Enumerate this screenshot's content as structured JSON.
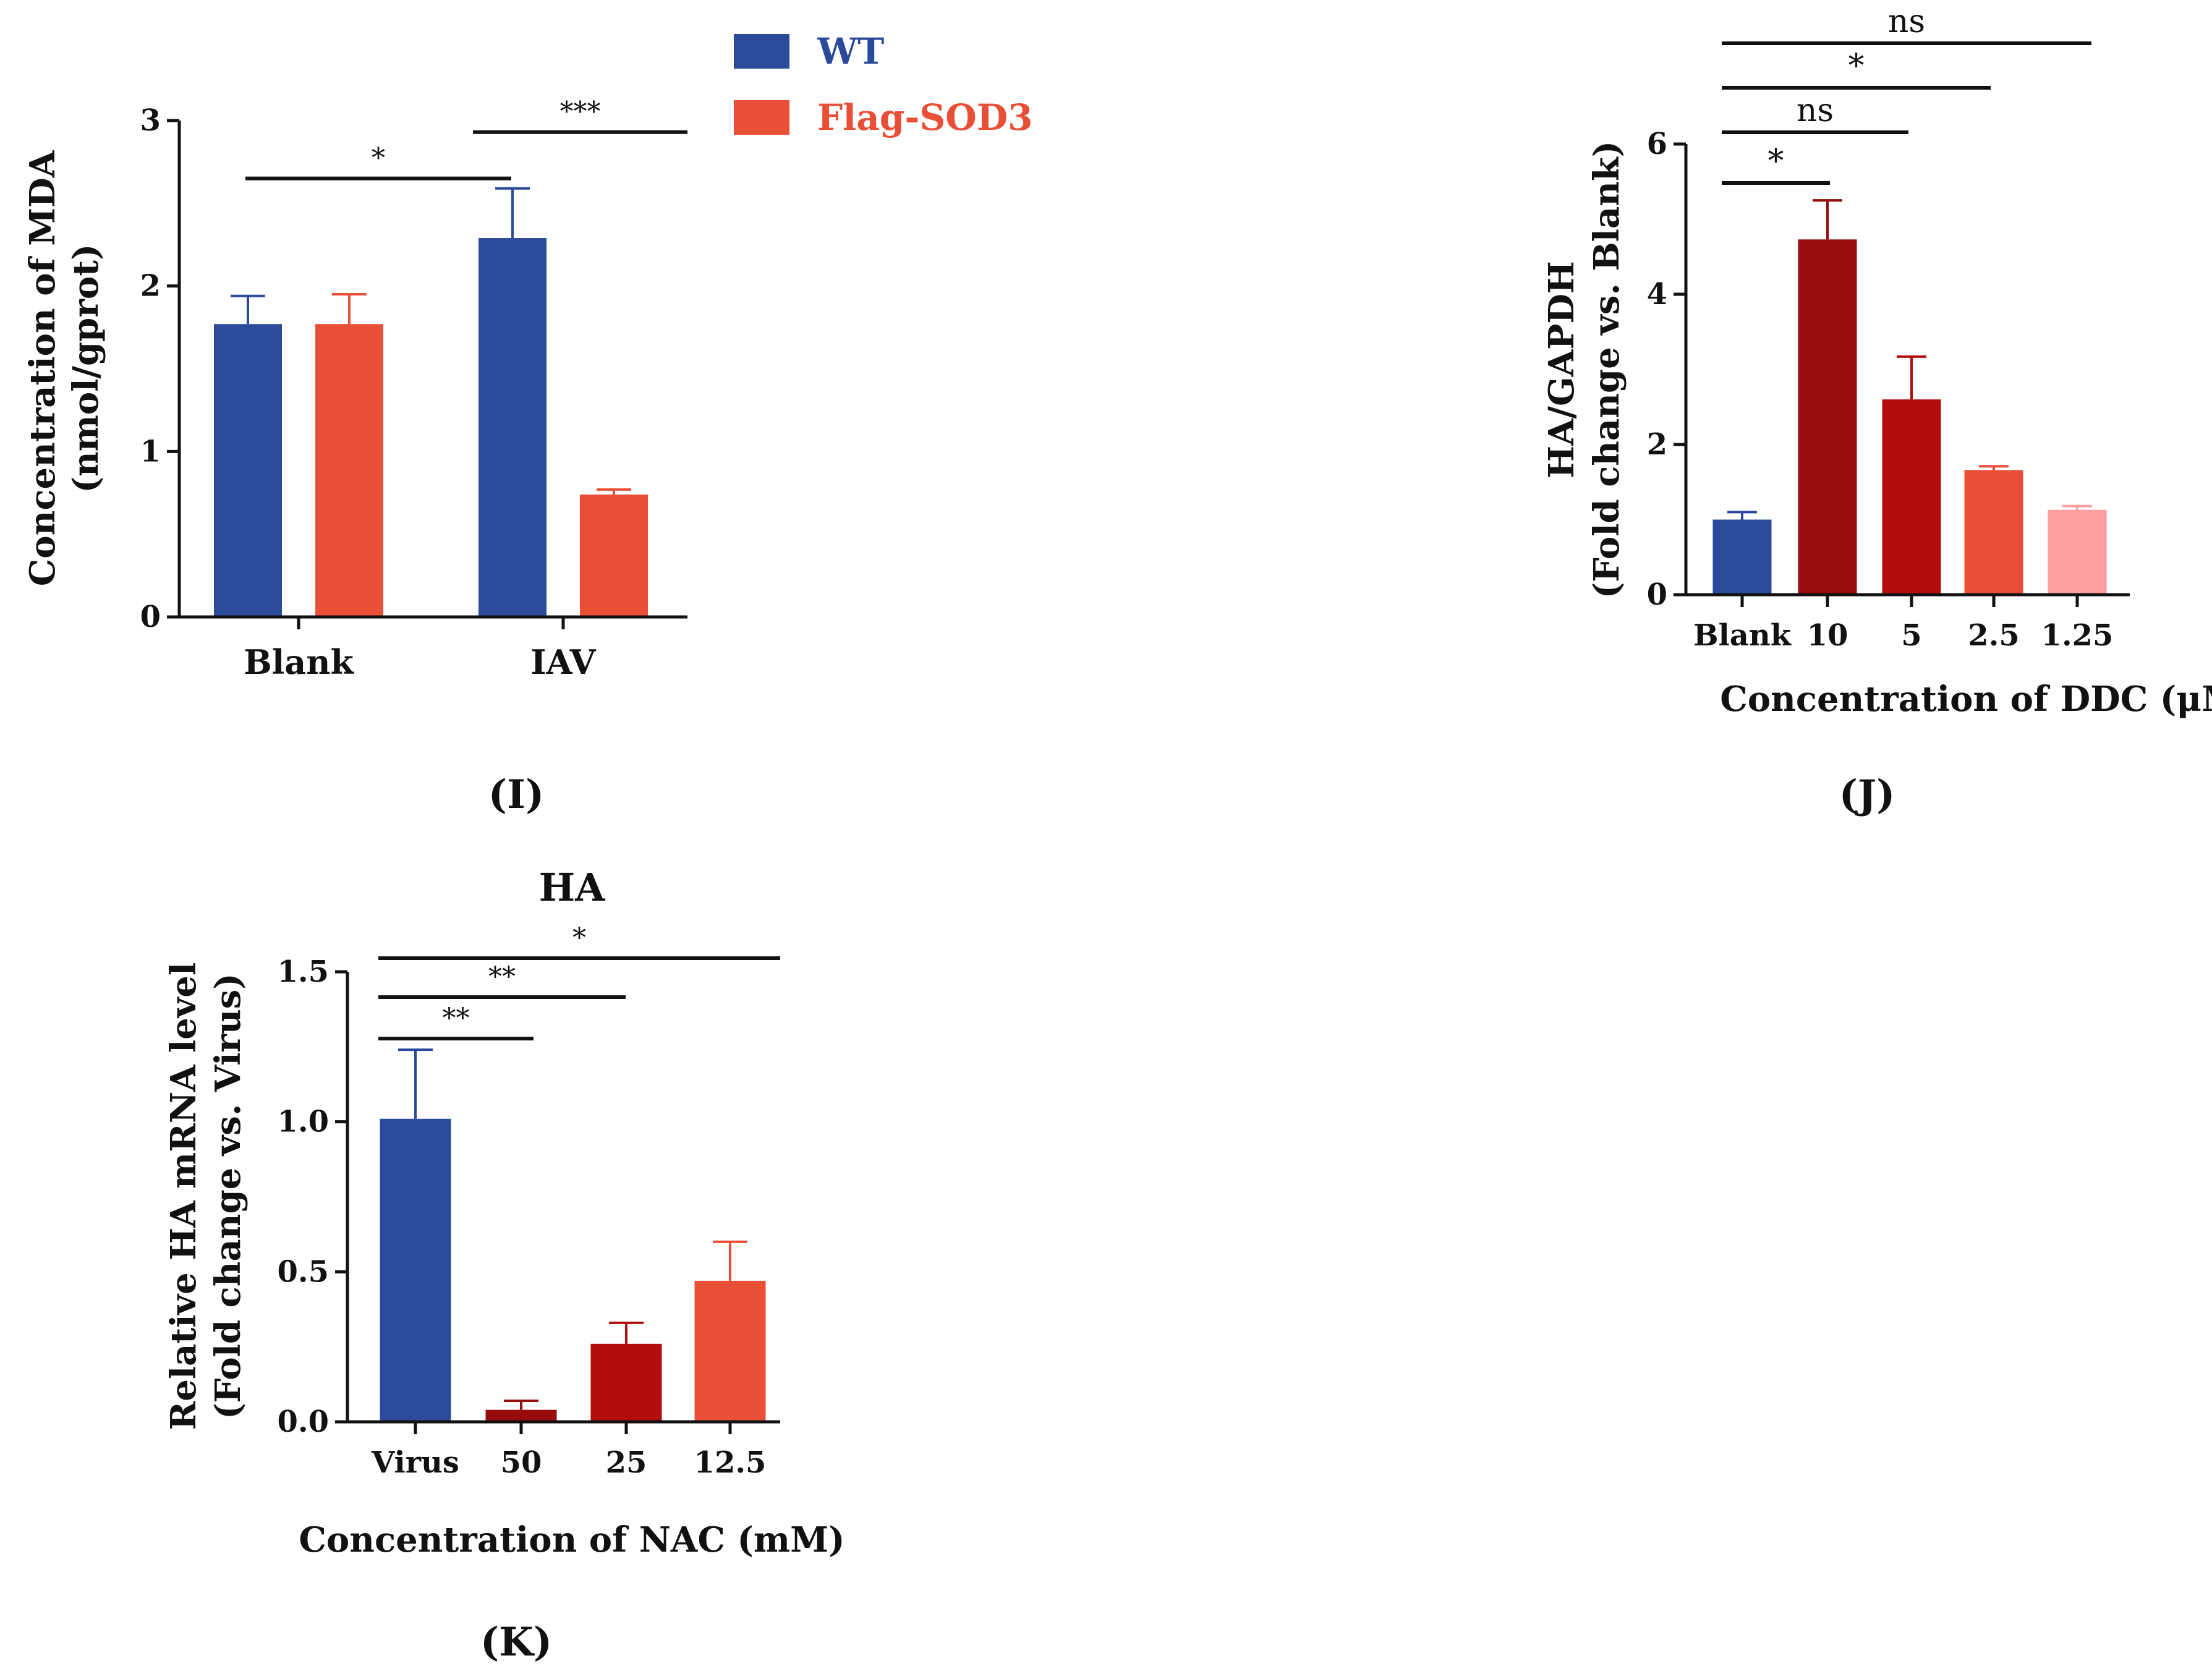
{
  "colors": {
    "wt_blue": "#2b4a9c",
    "flag_orange": "#e84f36",
    "dark_red": "#960c0c",
    "red": "#b20d0d",
    "pink": "#ff9e9e"
  },
  "chart_data": [
    {
      "panel": "(I)",
      "type": "bar",
      "title": "",
      "xlabel": "",
      "ylabel": [
        "Concentration of MDA",
        "(nmol/gprot)"
      ],
      "ylim": [
        0,
        3
      ],
      "yticks": [
        "0",
        "1",
        "2",
        "3"
      ],
      "categories": [
        "Blank",
        "IAV"
      ],
      "legend": [
        "WT",
        "Flag-SOD3"
      ],
      "legend_position": "top-right",
      "series": [
        {
          "name": "WT",
          "color": "#2b4a9c",
          "values": [
            1.77,
            2.29
          ],
          "errors": [
            0.17,
            0.3
          ]
        },
        {
          "name": "Flag-SOD3",
          "color": "#e84f36",
          "values": [
            1.77,
            0.74
          ],
          "errors": [
            0.18,
            0.03
          ]
        }
      ],
      "significance": [
        {
          "label": "*",
          "from": "Blank",
          "to": "IAV",
          "level": 2.65
        },
        {
          "label": "***",
          "from": "IAV",
          "to": "IAV",
          "level": 2.93
        }
      ]
    },
    {
      "panel": "(J)",
      "type": "bar",
      "title": "",
      "xlabel": "Concentration of DDC (μM)",
      "ylabel": [
        "HA/GAPDH",
        "(Fold change vs. Blank)"
      ],
      "ylim": [
        0,
        6
      ],
      "yticks": [
        "0",
        "2",
        "4",
        "6"
      ],
      "categories": [
        "Blank",
        "10",
        "5",
        "2.5",
        "1.25"
      ],
      "values": [
        1.0,
        4.73,
        2.6,
        1.66,
        1.13
      ],
      "errors": [
        0.1,
        0.52,
        0.57,
        0.05,
        0.05
      ],
      "colors": [
        "#2b4a9c",
        "#960c0c",
        "#b20d0d",
        "#e84f36",
        "#ff9e9e"
      ],
      "significance": [
        {
          "label": "*",
          "from": "Blank",
          "to": "10"
        },
        {
          "label": "ns",
          "from": "Blank",
          "to": "5"
        },
        {
          "label": "*",
          "from": "Blank",
          "to": "2.5"
        },
        {
          "label": "ns",
          "from": "Blank",
          "to": "1.25"
        }
      ]
    },
    {
      "panel": "(K)",
      "type": "bar",
      "title": "HA",
      "xlabel": "Concentration of NAC (mM)",
      "ylabel": [
        "Relative HA mRNA level",
        "(Fold change vs. Virus)"
      ],
      "ylim": [
        0,
        1.5
      ],
      "yticks": [
        "0.0",
        "0.5",
        "1.0",
        "1.5"
      ],
      "categories": [
        "Virus",
        "50",
        "25",
        "12.5"
      ],
      "values": [
        1.01,
        0.04,
        0.26,
        0.47
      ],
      "errors": [
        0.23,
        0.03,
        0.07,
        0.13
      ],
      "colors": [
        "#2b4a9c",
        "#960c0c",
        "#b20d0d",
        "#e84f36"
      ],
      "significance": [
        {
          "label": "**",
          "from": "Virus",
          "to": "50"
        },
        {
          "label": "**",
          "from": "Virus",
          "to": "25"
        },
        {
          "label": "*",
          "from": "Virus",
          "to": "12.5"
        }
      ]
    }
  ]
}
